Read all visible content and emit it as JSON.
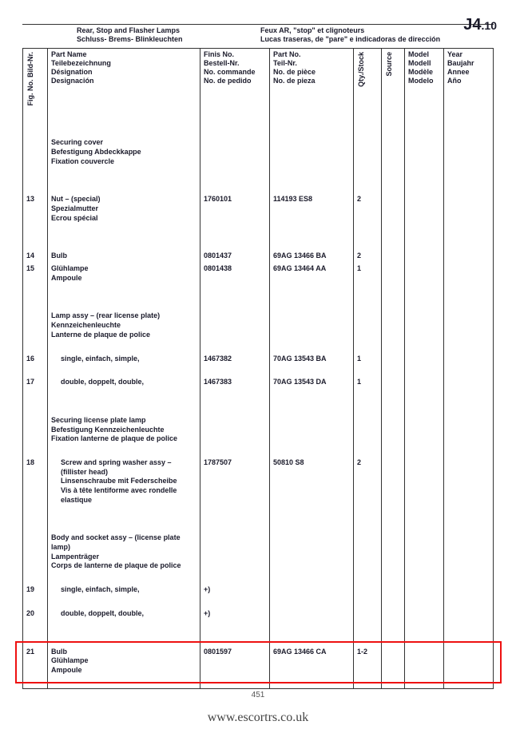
{
  "page_code": {
    "main": "J4",
    "sub": ".10"
  },
  "header": {
    "left_line1": "Rear, Stop and Flasher Lamps",
    "left_line2": "Schluss- Brems- Blinkleuchten",
    "right_line1": "Feux AR, \"stop\" et clignoteurs",
    "right_line2": "Lucas traseras, de \"pare\" e indicadoras de dirección"
  },
  "columns": {
    "fig": "Fig. No.\nBild-Nr.",
    "name": "Part Name\nTeilebezeichnung\nDésignation\nDesignación",
    "finis": "Finis No.\nBestell-Nr.\nNo. commande\nNo. de pedido",
    "partno": "Part No.\nTeil-Nr.\nNo. de pièce\nNo. de pieza",
    "qty": "Qty./Stock",
    "source": "Source",
    "model": "Model\nModell\nModèle\nModelo",
    "year": "Year\nBaujahr\nAnnee\nAño"
  },
  "rows": [
    {
      "type": "spacer"
    },
    {
      "type": "group",
      "lines": [
        "Securing cover",
        "Befestigung Abdeckkappe",
        "Fixation couvercle"
      ]
    },
    {
      "type": "spacer"
    },
    {
      "type": "item",
      "fig": "13",
      "name_lines": [
        "Nut – (special)",
        "Spezialmutter",
        "Ecrou spécial"
      ],
      "finis": "1760101",
      "partno": "114193 ES8",
      "qty": "2"
    },
    {
      "type": "spacer"
    },
    {
      "type": "item",
      "fig": "14",
      "name_lines": [
        "Bulb"
      ],
      "finis": "0801437",
      "partno": "69AG 13466 BA",
      "qty": "2"
    },
    {
      "type": "item",
      "fig": "15",
      "name_lines": [
        "Glühlampe",
        "Ampoule"
      ],
      "finis": "0801438",
      "partno": "69AG 13464 AA",
      "qty": "1"
    },
    {
      "type": "spacer"
    },
    {
      "type": "group",
      "lines": [
        "Lamp assy – (rear license plate)",
        "Kennzeichenleuchte",
        "Lanterne de plaque de police"
      ]
    },
    {
      "type": "spacer-sm"
    },
    {
      "type": "item",
      "fig": "16",
      "name_lines": [
        "single, einfach, simple,"
      ],
      "finis": "1467382",
      "partno": "70AG 13543 BA",
      "qty": "1",
      "indent": true
    },
    {
      "type": "spacer-sm"
    },
    {
      "type": "item",
      "fig": "17",
      "name_lines": [
        "double, doppelt, double,"
      ],
      "finis": "1467383",
      "partno": "70AG 13543 DA",
      "qty": "1",
      "indent": true
    },
    {
      "type": "spacer"
    },
    {
      "type": "group",
      "lines": [
        "Securing license plate lamp",
        "Befestigung Kennzeichenleuchte",
        "Fixation lanterne de plaque de police"
      ]
    },
    {
      "type": "spacer-sm"
    },
    {
      "type": "item",
      "fig": "18",
      "name_lines": [
        "Screw and spring washer assy –",
        "  (fillister head)",
        "Linsenschraube mit Federscheibe",
        "Vis à tête lentiforme avec rondelle",
        "  elastique"
      ],
      "finis": "1787507",
      "partno": "50810 S8",
      "qty": "2",
      "indent": true
    },
    {
      "type": "spacer"
    },
    {
      "type": "group",
      "lines": [
        "Body and socket assy – (license plate lamp)",
        "Lampenträger",
        "Corps de lanterne de plaque de police"
      ]
    },
    {
      "type": "spacer-sm"
    },
    {
      "type": "item",
      "fig": "19",
      "name_lines": [
        "single, einfach, simple,"
      ],
      "finis": "+)",
      "partno": "",
      "qty": "",
      "indent": true
    },
    {
      "type": "spacer-sm"
    },
    {
      "type": "item",
      "fig": "20",
      "name_lines": [
        "double, doppelt, double,"
      ],
      "finis": "+)",
      "partno": "",
      "qty": "",
      "indent": true
    },
    {
      "type": "spacer"
    },
    {
      "type": "item",
      "fig": "21",
      "name_lines": [
        "Bulb",
        "Glühlampe",
        "Ampoule"
      ],
      "finis": "0801597",
      "partno": "69AG 13466 CA",
      "qty": "1-2",
      "highlight": true
    },
    {
      "type": "spacer-sm"
    }
  ],
  "footer_page_num": "451",
  "watermark": "www.escortrs.co.uk",
  "highlight_box": {
    "color": "#e11",
    "stroke": 2
  }
}
